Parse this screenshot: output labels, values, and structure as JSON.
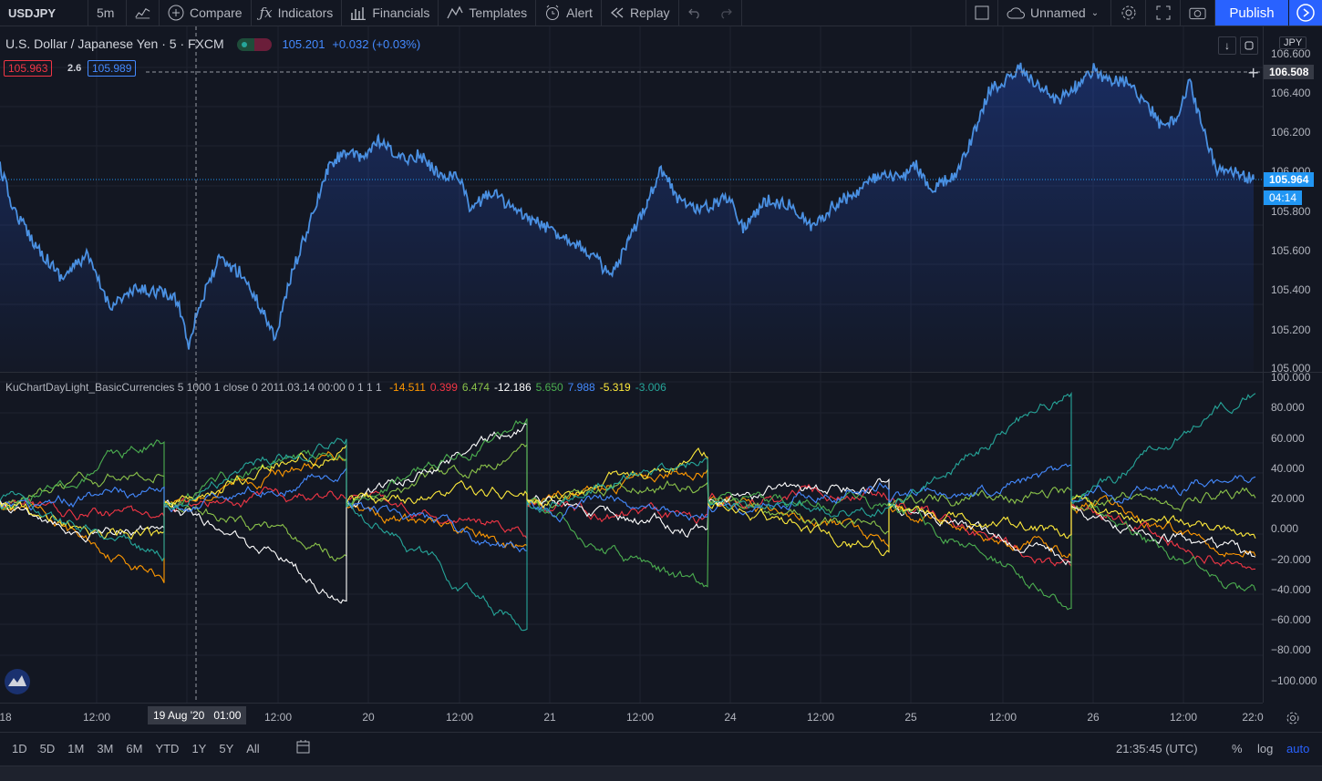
{
  "toolbar": {
    "symbol": "USDJPY",
    "interval": "5m",
    "compare": "Compare",
    "indicators": "Indicators",
    "financials": "Financials",
    "templates": "Templates",
    "alert": "Alert",
    "replay": "Replay",
    "layout_name": "Unnamed",
    "publish": "Publish"
  },
  "legend": {
    "title": "U.S. Dollar / Japanese Yen · 5 · FXCM",
    "price": "105.201",
    "change": "+0.032 (+0.03%)",
    "bid": "105.963",
    "spread": "2.6",
    "ask": "105.989",
    "currency": "JPY"
  },
  "price_axis": {
    "ticks": [
      "106.600",
      "106.400",
      "106.200",
      "106.000",
      "105.800",
      "105.600",
      "105.400",
      "105.200",
      "105.000"
    ],
    "crosshair_price": "106.508",
    "last_price": "105.964",
    "countdown": "04:14"
  },
  "indicator": {
    "name": "KuChartDayLight_BasicCurrencies 5 1000 1 close 0 2011.03.14 00:00 0 1 1 1",
    "values": [
      {
        "v": "-14.511",
        "color": "#ff9800"
      },
      {
        "v": "0.399",
        "color": "#f23645"
      },
      {
        "v": "6.474",
        "color": "#8bc34a"
      },
      {
        "v": "-12.186",
        "color": "#ffffff"
      },
      {
        "v": "5.650",
        "color": "#4caf50"
      },
      {
        "v": "7.988",
        "color": "#448aff"
      },
      {
        "v": "-5.319",
        "color": "#ffeb3b"
      },
      {
        "v": "-3.006",
        "color": "#26a69a"
      }
    ],
    "ticks": [
      "100.000",
      "80.000",
      "60.000",
      "40.000",
      "20.000",
      "0.000",
      "−20.000",
      "−40.000",
      "−60.000",
      "−80.000",
      "−100.000"
    ]
  },
  "time_axis": {
    "labels": [
      "18",
      "12:00",
      "12:00",
      "20",
      "12:00",
      "21",
      "12:00",
      "24",
      "12:00",
      "25",
      "12:00",
      "26",
      "12:00",
      "22:0"
    ],
    "crosshair_time": "19 Aug '20   01:00"
  },
  "bottom_bar": {
    "ranges": [
      "1D",
      "5D",
      "1M",
      "3M",
      "6M",
      "YTD",
      "1Y",
      "5Y",
      "All"
    ],
    "clock": "21:35:45 (UTC)",
    "percent": "%",
    "log": "log",
    "auto": "auto"
  },
  "colors": {
    "price_line": "#4a90e2",
    "accent": "#2962ff",
    "background": "#131722"
  }
}
